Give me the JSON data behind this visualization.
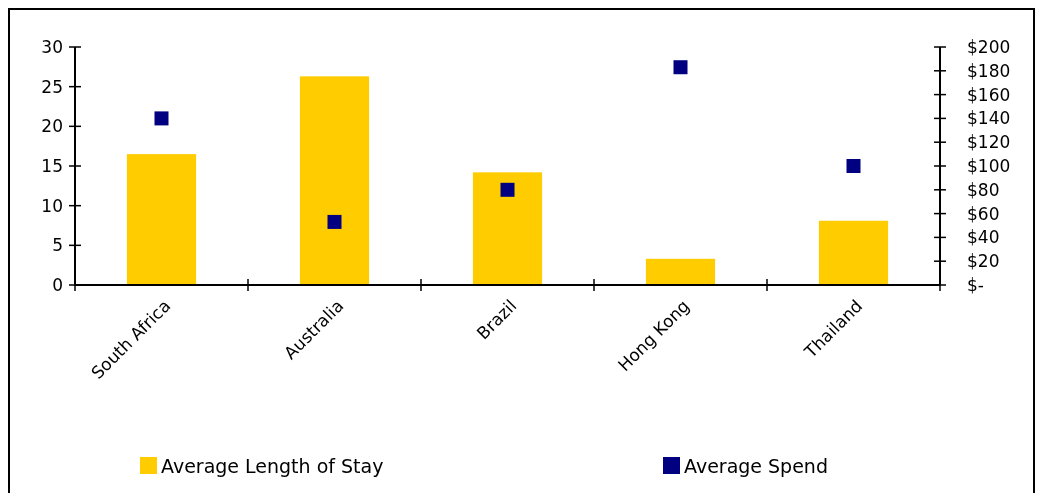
{
  "chart_data": {
    "type": "bar",
    "categories": [
      "South Africa",
      "Australia",
      "Brazil",
      "Hong Kong",
      "Thailand"
    ],
    "series": [
      {
        "name": "Average Length of Stay",
        "color": "#ffcc00",
        "values": [
          16.5,
          26.3,
          14.2,
          3.3,
          8.1
        ]
      },
      {
        "name": "Average Spend",
        "type": "scatter",
        "axis": "y2",
        "color": "#000080",
        "values": [
          140,
          53,
          80,
          183,
          100
        ]
      }
    ],
    "ylim": [
      0,
      30
    ],
    "yticks": [
      0,
      5,
      10,
      15,
      20,
      25,
      30
    ],
    "y2lim": [
      0,
      200
    ],
    "y2ticks": [
      {
        "value": 0,
        "label": "$-"
      },
      {
        "value": 20,
        "label": "$20"
      },
      {
        "value": 40,
        "label": "$40"
      },
      {
        "value": 60,
        "label": "$60"
      },
      {
        "value": 80,
        "label": "$80"
      },
      {
        "value": 100,
        "label": "$100"
      },
      {
        "value": 120,
        "label": "$120"
      },
      {
        "value": 140,
        "label": "$140"
      },
      {
        "value": 160,
        "label": "$160"
      },
      {
        "value": 180,
        "label": "$180"
      },
      {
        "value": 200,
        "label": "$200"
      }
    ],
    "marker": "square",
    "legend": "bottom"
  }
}
